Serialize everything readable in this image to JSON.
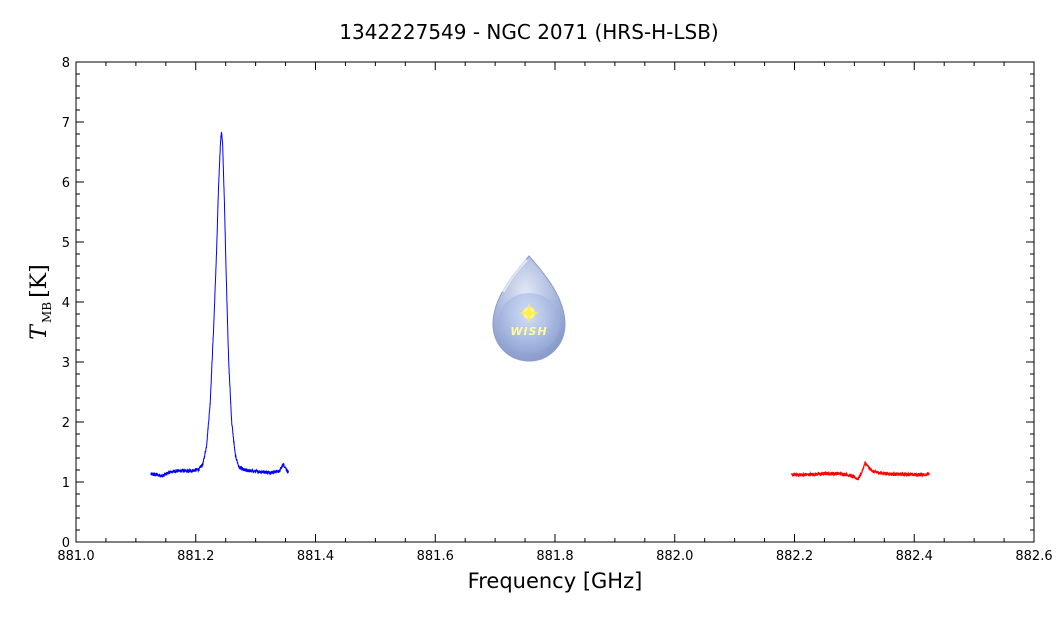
{
  "chart_data": {
    "type": "line",
    "title": "1342227549 - NGC 2071 (HRS-H-LSB)",
    "xlabel": "Frequency [GHz]",
    "ylabel_main": "T",
    "ylabel_sub": "MB",
    "ylabel_unit": "[K]",
    "xlim": [
      881.0,
      882.6
    ],
    "ylim": [
      0,
      8
    ],
    "x_ticks": [
      "881.0",
      "881.2",
      "881.4",
      "881.6",
      "881.8",
      "882.0",
      "882.2",
      "882.4",
      "882.6"
    ],
    "y_ticks": [
      "0",
      "1",
      "2",
      "3",
      "4",
      "5",
      "6",
      "7",
      "8"
    ],
    "grid": false,
    "logo_text": "WISH",
    "series": [
      {
        "color": "#0000ff",
        "x_range": [
          881.125,
          881.355
        ],
        "points": [
          [
            881.125,
            1.13
          ],
          [
            881.135,
            1.12
          ],
          [
            881.145,
            1.1
          ],
          [
            881.155,
            1.16
          ],
          [
            881.165,
            1.18
          ],
          [
            881.175,
            1.19
          ],
          [
            881.185,
            1.18
          ],
          [
            881.195,
            1.19
          ],
          [
            881.205,
            1.21
          ],
          [
            881.212,
            1.3
          ],
          [
            881.218,
            1.6
          ],
          [
            881.224,
            2.3
          ],
          [
            881.23,
            3.6
          ],
          [
            881.235,
            4.9
          ],
          [
            881.238,
            5.9
          ],
          [
            881.241,
            6.6
          ],
          [
            881.243,
            6.85
          ],
          [
            881.245,
            6.6
          ],
          [
            881.248,
            5.6
          ],
          [
            881.251,
            4.4
          ],
          [
            881.255,
            3.0
          ],
          [
            881.26,
            2.0
          ],
          [
            881.266,
            1.45
          ],
          [
            881.272,
            1.25
          ],
          [
            881.28,
            1.2
          ],
          [
            881.295,
            1.18
          ],
          [
            881.31,
            1.17
          ],
          [
            881.325,
            1.16
          ],
          [
            881.34,
            1.18
          ],
          [
            881.346,
            1.3
          ],
          [
            881.35,
            1.24
          ],
          [
            881.355,
            1.15
          ]
        ]
      },
      {
        "color": "#ff0000",
        "x_range": [
          882.195,
          882.425
        ],
        "points": [
          [
            882.195,
            1.12
          ],
          [
            882.215,
            1.12
          ],
          [
            882.235,
            1.13
          ],
          [
            882.255,
            1.14
          ],
          [
            882.275,
            1.14
          ],
          [
            882.29,
            1.12
          ],
          [
            882.3,
            1.08
          ],
          [
            882.306,
            1.05
          ],
          [
            882.312,
            1.15
          ],
          [
            882.318,
            1.32
          ],
          [
            882.324,
            1.24
          ],
          [
            882.332,
            1.17
          ],
          [
            882.345,
            1.15
          ],
          [
            882.365,
            1.13
          ],
          [
            882.385,
            1.13
          ],
          [
            882.405,
            1.12
          ],
          [
            882.425,
            1.13
          ]
        ]
      }
    ]
  }
}
